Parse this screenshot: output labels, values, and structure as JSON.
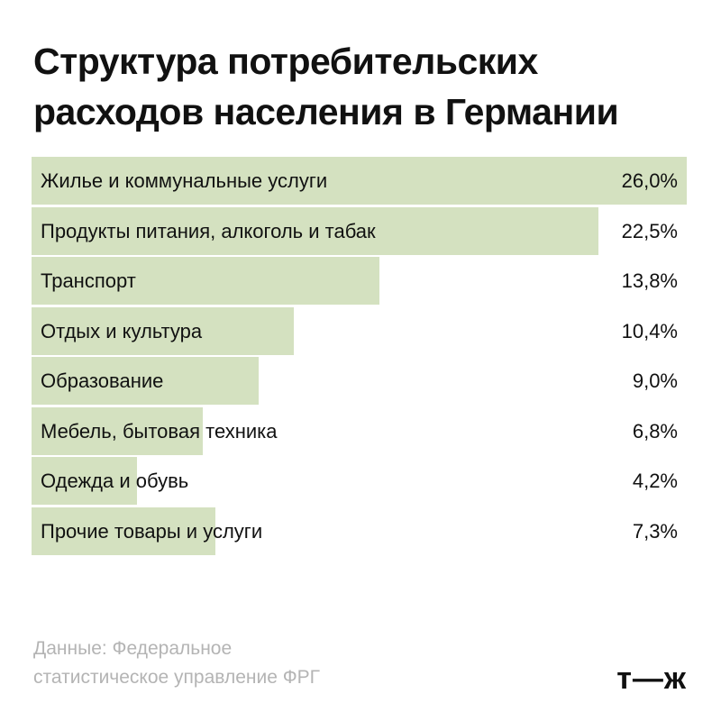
{
  "title_line1": "Структура потребительских",
  "title_line2": "расходов населения в Германии",
  "chart_data": {
    "type": "bar",
    "orientation": "horizontal",
    "title": "Структура потребительских расходов населения в Германии",
    "unit": "%",
    "xlim": [
      0,
      26
    ],
    "categories": [
      "Жилье и коммунальные услуги",
      "Продукты питания, алкоголь и табак",
      "Транспорт",
      "Отдых и культура",
      "Образование",
      "Мебель, бытовая техника",
      "Одежда и обувь",
      "Прочие товары и услуги"
    ],
    "values": [
      26.0,
      22.5,
      13.8,
      10.4,
      9.0,
      6.8,
      4.2,
      7.3
    ],
    "value_labels": [
      "26,0%",
      "22,5%",
      "13,8%",
      "10,4%",
      "9,0%",
      "6,8%",
      "4,2%",
      "7,3%"
    ],
    "bar_color": "#d4e1c0",
    "grid": false
  },
  "source_line1": "Данные: Федеральное",
  "source_line2": "статистическое управление ФРГ",
  "logo": "т—ж"
}
